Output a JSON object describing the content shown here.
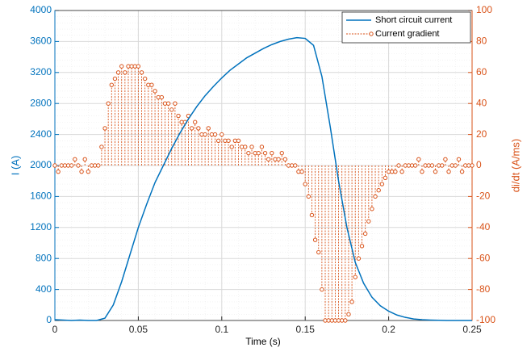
{
  "chart_data": {
    "type": "line_stem",
    "xlabel": "Time (s)",
    "ylabel": "I (A)",
    "y2label": "di/dt (A/ms)",
    "xlim": [
      0,
      0.25
    ],
    "xticks": [
      0,
      0.05,
      0.1,
      0.15,
      0.2,
      0.25
    ],
    "ylim": [
      0,
      4000
    ],
    "yticks": [
      0,
      400,
      800,
      1200,
      1600,
      2000,
      2400,
      2800,
      3200,
      3600,
      4000
    ],
    "y2lim": [
      -100,
      100
    ],
    "y2ticks": [
      -100,
      -80,
      -60,
      -40,
      -20,
      0,
      20,
      40,
      60,
      80,
      100
    ],
    "grid": true,
    "minor_grid": true,
    "legend": "northeast",
    "series": [
      {
        "name": "Short circuit current",
        "color": "#0072bd",
        "kind": "line",
        "x": [
          0,
          0.005,
          0.01,
          0.015,
          0.02,
          0.025,
          0.03,
          0.035,
          0.04,
          0.045,
          0.05,
          0.055,
          0.06,
          0.065,
          0.07,
          0.075,
          0.08,
          0.085,
          0.09,
          0.095,
          0.1,
          0.105,
          0.11,
          0.115,
          0.12,
          0.125,
          0.13,
          0.135,
          0.14,
          0.145,
          0.15,
          0.155,
          0.16,
          0.165,
          0.17,
          0.175,
          0.18,
          0.185,
          0.19,
          0.195,
          0.2,
          0.205,
          0.21,
          0.215,
          0.22,
          0.225,
          0.23,
          0.235,
          0.24,
          0.245,
          0.25
        ],
        "values": [
          10,
          5,
          0,
          5,
          0,
          0,
          30,
          200,
          500,
          850,
          1200,
          1500,
          1780,
          2000,
          2220,
          2420,
          2600,
          2760,
          2900,
          3020,
          3130,
          3230,
          3310,
          3390,
          3450,
          3510,
          3560,
          3600,
          3630,
          3650,
          3640,
          3550,
          3150,
          2500,
          1800,
          1200,
          750,
          480,
          300,
          190,
          120,
          70,
          40,
          20,
          10,
          5,
          2,
          0,
          0,
          0,
          0
        ]
      },
      {
        "name": "Current gradient",
        "color": "#d95319",
        "kind": "stem",
        "axis": "y2",
        "x": [
          0,
          0.002,
          0.004,
          0.006,
          0.008,
          0.01,
          0.012,
          0.014,
          0.016,
          0.018,
          0.02,
          0.022,
          0.024,
          0.026,
          0.028,
          0.03,
          0.032,
          0.034,
          0.036,
          0.038,
          0.04,
          0.042,
          0.044,
          0.046,
          0.048,
          0.05,
          0.052,
          0.054,
          0.056,
          0.058,
          0.06,
          0.062,
          0.064,
          0.066,
          0.068,
          0.07,
          0.072,
          0.074,
          0.076,
          0.078,
          0.08,
          0.082,
          0.084,
          0.086,
          0.088,
          0.09,
          0.092,
          0.094,
          0.096,
          0.098,
          0.1,
          0.102,
          0.104,
          0.106,
          0.108,
          0.11,
          0.112,
          0.114,
          0.116,
          0.118,
          0.12,
          0.122,
          0.124,
          0.126,
          0.128,
          0.13,
          0.132,
          0.134,
          0.136,
          0.138,
          0.14,
          0.142,
          0.144,
          0.146,
          0.148,
          0.15,
          0.152,
          0.154,
          0.156,
          0.158,
          0.16,
          0.162,
          0.164,
          0.166,
          0.168,
          0.17,
          0.172,
          0.174,
          0.176,
          0.178,
          0.18,
          0.182,
          0.184,
          0.186,
          0.188,
          0.19,
          0.192,
          0.194,
          0.196,
          0.198,
          0.2,
          0.202,
          0.204,
          0.206,
          0.208,
          0.21,
          0.212,
          0.214,
          0.216,
          0.218,
          0.22,
          0.222,
          0.224,
          0.226,
          0.228,
          0.23,
          0.232,
          0.234,
          0.236,
          0.238,
          0.24,
          0.242,
          0.244,
          0.246,
          0.248,
          0.25
        ],
        "values": [
          0,
          -4,
          0,
          0,
          0,
          0,
          4,
          0,
          -4,
          4,
          -4,
          0,
          0,
          0,
          12,
          24,
          40,
          52,
          56,
          60,
          64,
          60,
          64,
          64,
          64,
          64,
          60,
          56,
          52,
          52,
          48,
          44,
          44,
          40,
          40,
          36,
          40,
          32,
          28,
          28,
          32,
          24,
          28,
          24,
          20,
          20,
          24,
          20,
          20,
          16,
          20,
          16,
          16,
          12,
          16,
          16,
          12,
          12,
          8,
          12,
          8,
          8,
          12,
          8,
          4,
          8,
          4,
          4,
          8,
          4,
          0,
          0,
          0,
          -4,
          -4,
          -12,
          -20,
          -32,
          -48,
          -56,
          -80,
          -100,
          -100,
          -100,
          -100,
          -100,
          -100,
          -100,
          -96,
          -88,
          -72,
          -60,
          -52,
          -44,
          -36,
          -28,
          -20,
          -16,
          -12,
          -8,
          -4,
          -4,
          -4,
          0,
          -4,
          0,
          0,
          0,
          0,
          4,
          -4,
          0,
          0,
          0,
          -4,
          0,
          0,
          4,
          -4,
          0,
          0,
          4,
          -4,
          0,
          0,
          0
        ]
      }
    ]
  }
}
